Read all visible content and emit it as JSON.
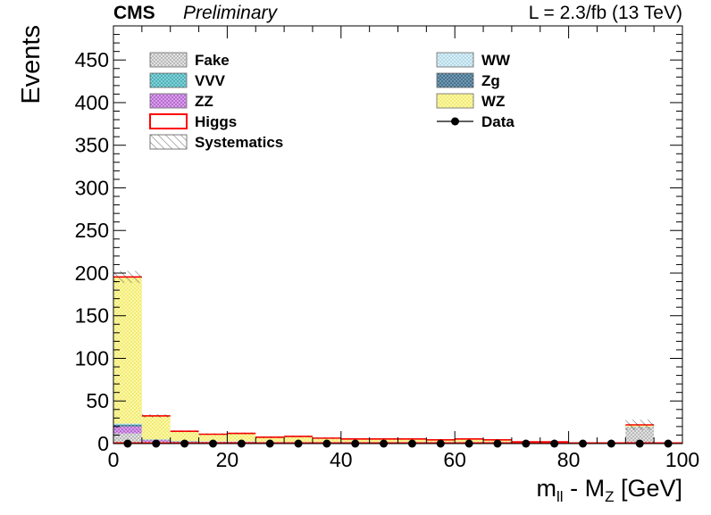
{
  "header": {
    "experiment": "CMS",
    "status": "Preliminary",
    "lumi": "L = 2.3/fb (13 TeV)"
  },
  "chart_data": {
    "type": "bar",
    "stacked": true,
    "xlabel": "m_ll - M_Z [GeV]",
    "ylabel": "Events",
    "xlim": [
      0,
      100
    ],
    "ylim": [
      0,
      490
    ],
    "x_ticks": [
      0,
      20,
      40,
      60,
      80,
      100
    ],
    "y_ticks": [
      0,
      50,
      100,
      150,
      200,
      250,
      300,
      350,
      400,
      450
    ],
    "grid": false,
    "legend_position": "top",
    "bin_edges": [
      0,
      5,
      10,
      15,
      20,
      25,
      30,
      35,
      40,
      45,
      50,
      55,
      60,
      65,
      70,
      75,
      80,
      85,
      90,
      95,
      100
    ],
    "series": [
      {
        "name": "Fake",
        "color": "#c8c8c8",
        "pattern": "dots-gray",
        "values": [
          12,
          2,
          1,
          1,
          1,
          1,
          1,
          1,
          1,
          1,
          1,
          1,
          1,
          1,
          1,
          1,
          0,
          0,
          20,
          0
        ]
      },
      {
        "name": "ZZ",
        "color": "#b050d0",
        "pattern": "dots-purple",
        "values": [
          8,
          2,
          1,
          1,
          1,
          0.5,
          0.5,
          0.5,
          0.5,
          0.5,
          0.5,
          0.5,
          0.5,
          0.5,
          0,
          0,
          0,
          0,
          0,
          0
        ]
      },
      {
        "name": "Zg",
        "color": "#3d6a8a",
        "pattern": "dots-teal-dark",
        "values": [
          2,
          0.5,
          0.5,
          0,
          0,
          0,
          0,
          0,
          0,
          0,
          0,
          0,
          0,
          0,
          0,
          0,
          0,
          0,
          0,
          0
        ]
      },
      {
        "name": "VVV",
        "color": "#38b0b8",
        "pattern": "dots-teal",
        "values": [
          0.5,
          0.2,
          0.2,
          0.2,
          0.2,
          0.2,
          0.1,
          0.1,
          0.1,
          0.1,
          0.1,
          0.1,
          0.1,
          0.1,
          0,
          0,
          0,
          0,
          0,
          0
        ]
      },
      {
        "name": "WW",
        "color": "#a8d8e8",
        "pattern": "dots-lightblue",
        "values": [
          1,
          0.3,
          0.3,
          0.3,
          0.3,
          0.3,
          0.3,
          0.3,
          0.3,
          0.3,
          0.3,
          0.3,
          0.3,
          0.3,
          0,
          0,
          0,
          0,
          0,
          0
        ]
      },
      {
        "name": "WZ",
        "color": "#f5f070",
        "pattern": "dots-yellow",
        "values": [
          171,
          27,
          11,
          8,
          9,
          5,
          6,
          4,
          3,
          3,
          3,
          2,
          3,
          2,
          1,
          1,
          0,
          0,
          2,
          0
        ]
      },
      {
        "name": "Higgs",
        "color": "#ff0000",
        "style": "red-outline",
        "values": [
          1,
          0.5,
          0.5,
          0.5,
          0.5,
          0.5,
          0.5,
          0.5,
          0.5,
          0.5,
          0.5,
          0.5,
          0.5,
          0.5,
          0,
          0,
          0,
          0,
          0,
          0
        ]
      }
    ],
    "systematics": {
      "name": "Systematics",
      "uncertainty": [
        7,
        2,
        1,
        1,
        1,
        1,
        1,
        1,
        0.5,
        0.5,
        0.5,
        0.5,
        0.5,
        0.5,
        0.3,
        0.3,
        0,
        0,
        6,
        0
      ]
    },
    "data": {
      "name": "Data",
      "x": [
        2.5,
        7.5,
        12.5,
        17.5,
        22.5,
        27.5,
        32.5,
        37.5,
        42.5,
        47.5,
        52.5,
        57.5,
        62.5,
        67.5,
        72.5,
        77.5,
        82.5,
        87.5,
        92.5,
        97.5
      ],
      "y": [
        0,
        0,
        0,
        0,
        0,
        0,
        0,
        0,
        0,
        0,
        0,
        0,
        0,
        0,
        0,
        0,
        0,
        0,
        0,
        0
      ]
    },
    "legend": [
      {
        "label": "Fake",
        "key": "Fake"
      },
      {
        "label": "WW",
        "key": "WW"
      },
      {
        "label": "VVV",
        "key": "VVV"
      },
      {
        "label": "Zg",
        "key": "Zg"
      },
      {
        "label": "ZZ",
        "key": "ZZ"
      },
      {
        "label": "WZ",
        "key": "WZ"
      },
      {
        "label": "Higgs",
        "key": "Higgs"
      },
      {
        "label": "Data",
        "key": "Data"
      },
      {
        "label": "Systematics",
        "key": "Systematics"
      }
    ]
  }
}
